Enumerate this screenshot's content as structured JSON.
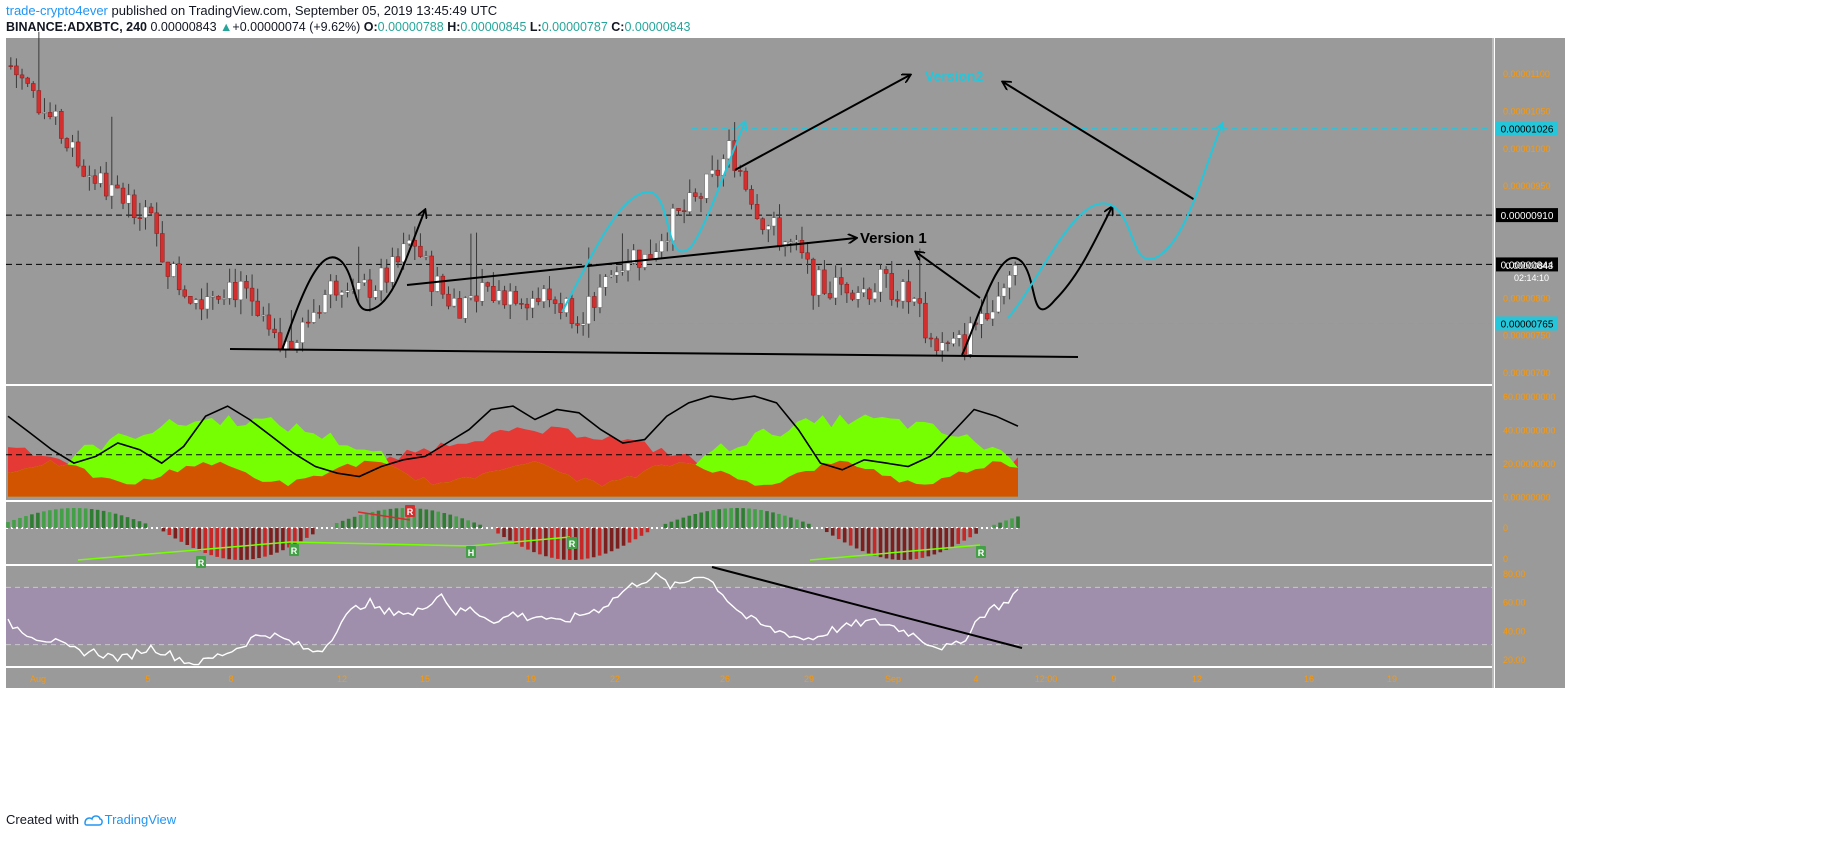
{
  "header": {
    "author": "trade-crypto4ever",
    "publish_text": " published on TradingView.com, September 05, 2019 13:45:49 UTC"
  },
  "symbol_bar": {
    "symbol": "BINANCE:ADXBTC, 240",
    "last": "0.00000843",
    "change_icon": "triangle-up-icon",
    "change": "+0.00000074 (+9.62%)",
    "o_label": "O:",
    "o": "0.00000788",
    "h_label": "H:",
    "h": "0.00000845",
    "l_label": "L:",
    "l": "0.00000787",
    "c_label": "C:",
    "c": "0.00000843"
  },
  "footer": {
    "created_with": "Created with",
    "brand": "TradingView",
    "brand_icon": "tradingview-logo-icon"
  },
  "colors": {
    "panel_bg": "#9a9a9a",
    "up_candle": "#ffffff",
    "down_candle": "#d32f2f",
    "cyan": "#26c6da",
    "axis_text": "#ff9800",
    "green_area": "#76ff03",
    "red_area": "#e53935",
    "orange_area": "#d35400",
    "rsi_band": "#9f8fad"
  },
  "chart_data": [
    {
      "type": "candlestick",
      "title": "BINANCE:ADXBTC, 240",
      "x_tick_labels": [
        "Aug",
        "5",
        "8",
        "12",
        "15",
        "19",
        "22",
        "26",
        "29",
        "Sep",
        "4",
        "12:00",
        "9",
        "12",
        "16",
        "19"
      ],
      "y_tick_labels": [
        "0.00001100",
        "0.00001050",
        "0.00001000",
        "0.00000950",
        "0.00000910",
        "0.00000844",
        "0.00000843",
        "0.00000800",
        "0.00000765",
        "0.00000750",
        "0.00000700"
      ],
      "ylim": [
        6.84e-06,
        1.147e-05
      ],
      "close_path": [
        1.11e-05,
        1.08e-05,
        1.05e-05,
        1.02e-05,
        9.8e-06,
        9.6e-06,
        9.4e-06,
        9.3e-06,
        9.2e-06,
        8.6e-06,
        8.2e-06,
        8e-06,
        8.1e-06,
        8.2e-06,
        8e-06,
        7.6e-06,
        7.3e-06,
        7.4e-06,
        7.8e-06,
        8.1e-06,
        8.3e-06,
        8.1e-06,
        8.2e-06,
        8.4e-06,
        8.8e-06,
        8.3e-06,
        8e-06,
        7.9e-06,
        8.2e-06,
        8e-06,
        8.1e-06,
        8e-06,
        8e-06,
        7.9e-06,
        7.8e-06,
        8e-06,
        8.3e-06,
        8.6e-06,
        8.5e-06,
        8.9e-06,
        9.1e-06,
        9.3e-06,
        9.6e-06,
        1e-05,
        9.5e-06,
        9e-06,
        8.8e-06,
        8.6e-06,
        8.2e-06,
        8.1e-06,
        8.2e-06,
        8.1e-06,
        8.2e-06,
        8.1e-06,
        7.9e-06,
        7.4e-06,
        7.3e-06,
        7.4e-06,
        7.8e-06,
        8.1e-06,
        8.4e-06
      ],
      "last_price": "0.00000843",
      "countdown": "02:14:10",
      "highlighted_levels": [
        {
          "label": "0.00001026",
          "value": 1.026e-05,
          "style": "cyan"
        },
        {
          "label": "0.00000910",
          "value": 9.1e-06,
          "style": "black"
        },
        {
          "label": "0.00000844",
          "value": 8.44e-06,
          "style": "black"
        },
        {
          "label": "0.00000765",
          "value": 7.65e-06,
          "style": "cyan"
        }
      ],
      "annotations": [
        "Version 1",
        "Version2"
      ]
    },
    {
      "type": "area",
      "y_tick_labels": [
        "60.00000000",
        "40.00000000",
        "20.00000000",
        "0.00000000"
      ],
      "ylim": [
        -2,
        66
      ],
      "reference_level": 25,
      "line_values": [
        48,
        38,
        28,
        20,
        24,
        32,
        28,
        20,
        30,
        48,
        54,
        46,
        36,
        26,
        18,
        14,
        12,
        18,
        22,
        24,
        32,
        40,
        52,
        54,
        46,
        52,
        50,
        40,
        32,
        34,
        48,
        56,
        60,
        58,
        60,
        56,
        40,
        20,
        16,
        22,
        20,
        18,
        24,
        38,
        52,
        48,
        42
      ]
    },
    {
      "type": "bar",
      "y_tick_labels": [
        "0",
        "0"
      ],
      "markers": [
        "R",
        "R",
        "R",
        "H",
        "R",
        "R"
      ]
    },
    {
      "type": "line",
      "y_tick_labels": [
        "80.00",
        "60.00",
        "40.00",
        "20.00"
      ],
      "ylim": [
        15,
        85
      ],
      "band": [
        30,
        70
      ],
      "values": [
        45,
        40,
        35,
        33,
        28,
        25,
        25,
        22,
        20,
        25,
        28,
        24,
        20,
        15,
        20,
        24,
        28,
        35,
        38,
        34,
        30,
        25,
        28,
        45,
        55,
        60,
        52,
        54,
        50,
        58,
        66,
        52,
        55,
        50,
        46,
        52,
        49,
        50,
        45,
        48,
        52,
        55,
        62,
        70,
        75,
        78,
        70,
        74,
        80,
        72,
        60,
        50,
        45,
        40,
        38,
        34,
        35,
        40,
        42,
        45,
        46,
        44,
        40,
        36,
        30,
        28,
        30,
        45,
        55,
        58,
        68
      ]
    }
  ]
}
